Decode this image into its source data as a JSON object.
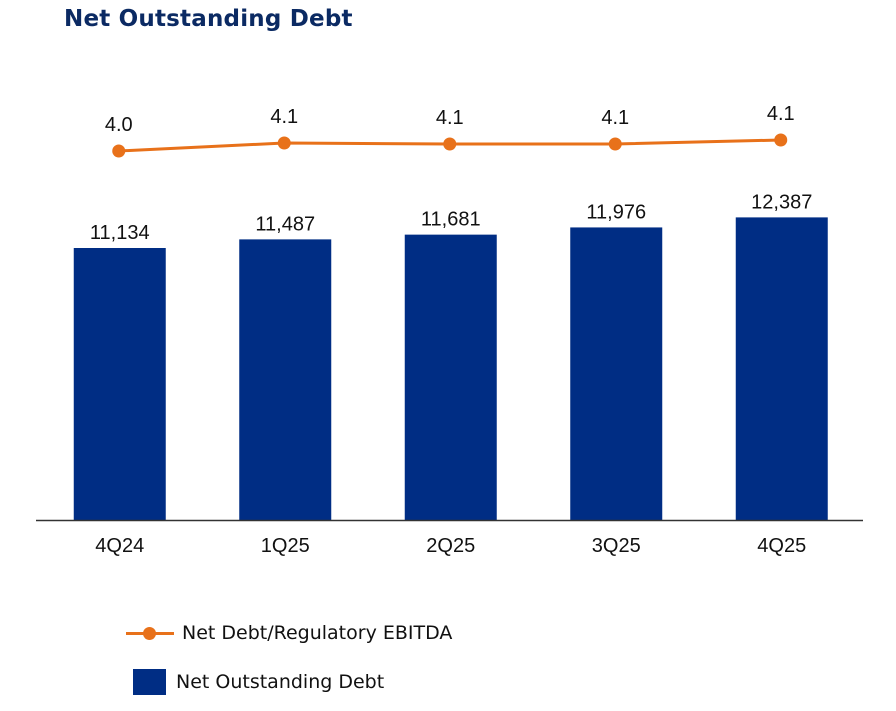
{
  "chart_data": {
    "type": "bar",
    "title": "Net Outstanding Debt",
    "categories": [
      "4Q24",
      "1Q25",
      "2Q25",
      "3Q25",
      "4Q25"
    ],
    "series": [
      {
        "name": "Net Outstanding Debt",
        "type": "bar",
        "values": [
          11134,
          11487,
          11681,
          11976,
          12387
        ],
        "labels": [
          "11,134",
          "11,487",
          "11,681",
          "11,976",
          "12,387"
        ],
        "color": "#002d84"
      },
      {
        "name": "Net Debt/Regulatory EBITDA",
        "type": "line",
        "values": [
          4.0,
          4.1,
          4.1,
          4.1,
          4.1
        ],
        "labels": [
          "4.0",
          "4.1",
          "4.1",
          "4.1",
          "4.1"
        ],
        "color": "#e8711a"
      }
    ],
    "xlabel": "",
    "ylabel": "",
    "ylim": [
      0,
      16000
    ],
    "y2lim": [
      0,
      4.6
    ],
    "grid": false,
    "legend_placement": "bottom-left"
  },
  "legend": {
    "line_label": "Net Debt/Regulatory EBITDA",
    "bar_label": "Net Outstanding Debt"
  }
}
